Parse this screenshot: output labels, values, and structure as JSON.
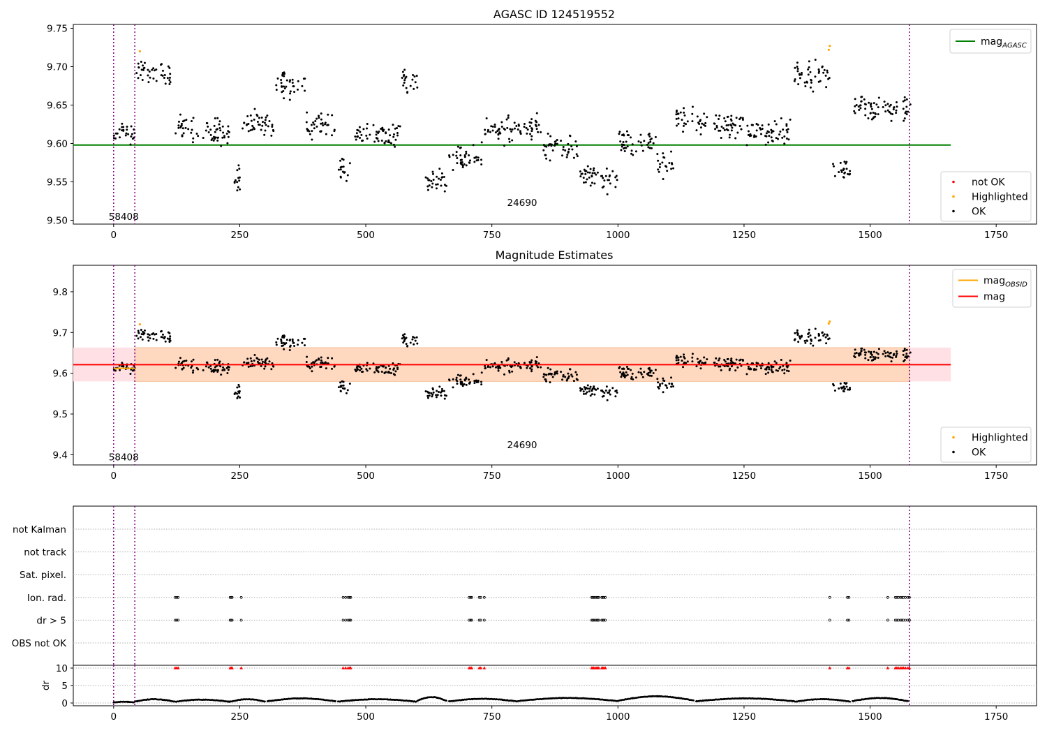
{
  "colors": {
    "ok": "#000000",
    "highlighted": "#ffa500",
    "not_ok": "#ff0000",
    "mag_agasc": "#008000",
    "mag_obsid": "#ffa500",
    "mag": "#ff0000",
    "interval": "#800080",
    "band_inner": "#ffd8c0",
    "band_outer": "#ffe0e4"
  },
  "chart_data": [
    {
      "type": "scatter",
      "title": "AGASC ID 124519552",
      "xlim": [
        -80,
        1830
      ],
      "ylim": [
        9.495,
        9.755
      ],
      "xticks": [
        0,
        250,
        500,
        750,
        1000,
        1250,
        1500,
        1750
      ],
      "yticks": [
        "9.50",
        "9.55",
        "9.60",
        "9.65",
        "9.70",
        "9.75"
      ],
      "xtick_labels": [
        "0",
        "250",
        "500",
        "750",
        "1000",
        "1250",
        "1500",
        "1750"
      ],
      "interval_lines_x": [
        0,
        42,
        1578
      ],
      "annotations": [
        {
          "text": "58408",
          "x": 20,
          "y": 9.505
        },
        {
          "text": "24690",
          "x": 810,
          "y": 9.523
        }
      ],
      "hline": {
        "name": "mag_AGASC",
        "y": 9.598,
        "x": [
          -80,
          1660
        ]
      },
      "legend": [
        {
          "label": "mag",
          "sub": "AGASC",
          "kind": "line",
          "color": "#008000"
        },
        {
          "label": "not OK",
          "kind": "marker",
          "color": "#ff0000"
        },
        {
          "label": "Highlighted",
          "kind": "marker",
          "color": "#ffa500"
        },
        {
          "label": "OK",
          "kind": "marker",
          "color": "#000000"
        }
      ],
      "series": [
        {
          "name": "OK",
          "color": "#000000",
          "segments": [
            [
              0,
              42,
              9.612
            ],
            [
              45,
              85,
              9.695
            ],
            [
              90,
              115,
              9.69
            ],
            [
              122,
              160,
              9.62
            ],
            [
              165,
              230,
              9.615
            ],
            [
              232,
              252,
              9.55
            ],
            [
              255,
              320,
              9.625
            ],
            [
              322,
              380,
              9.675
            ],
            [
              382,
              440,
              9.625
            ],
            [
              445,
              470,
              9.57
            ],
            [
              475,
              570,
              9.612
            ],
            [
              572,
              605,
              9.68
            ],
            [
              615,
              660,
              9.55
            ],
            [
              665,
              730,
              9.58
            ],
            [
              735,
              850,
              9.62
            ],
            [
              852,
              920,
              9.595
            ],
            [
              925,
              1000,
              9.555
            ],
            [
              1002,
              1075,
              9.6
            ],
            [
              1078,
              1110,
              9.575
            ],
            [
              1115,
              1150,
              9.635
            ],
            [
              1155,
              1250,
              9.625
            ],
            [
              1255,
              1345,
              9.615
            ],
            [
              1350,
              1420,
              9.69
            ],
            [
              1425,
              1460,
              9.565
            ],
            [
              1465,
              1580,
              9.645
            ]
          ]
        },
        {
          "name": "Highlighted",
          "color": "#ffa500",
          "points": [
            [
              52,
              9.72
            ],
            [
              1418,
              9.722
            ],
            [
              1420,
              9.727
            ]
          ]
        }
      ]
    },
    {
      "type": "scatter",
      "title": "Magnitude Estimates",
      "xlim": [
        -80,
        1830
      ],
      "ylim": [
        9.375,
        9.865
      ],
      "xticks": [
        0,
        250,
        500,
        750,
        1000,
        1250,
        1500,
        1750
      ],
      "yticks": [
        "9.4",
        "9.5",
        "9.6",
        "9.7",
        "9.8"
      ],
      "xtick_labels": [
        "0",
        "250",
        "500",
        "750",
        "1000",
        "1250",
        "1500",
        "1750"
      ],
      "interval_lines_x": [
        0,
        42,
        1578
      ],
      "annotations": [
        {
          "text": "58408",
          "x": 20,
          "y": 9.395
        },
        {
          "text": "24690",
          "x": 810,
          "y": 9.425
        }
      ],
      "hline": {
        "name": "mag",
        "y": 9.621,
        "x": [
          -80,
          1660
        ]
      },
      "band": {
        "y": [
          9.58,
          9.663
        ],
        "x": [
          -80,
          1660
        ]
      },
      "legend": [
        {
          "label": "mag",
          "sub": "OBSID",
          "kind": "line",
          "color": "#ffa500"
        },
        {
          "label": "mag",
          "kind": "line",
          "color": "#ff0000"
        },
        {
          "label": "Highlighted",
          "kind": "marker",
          "color": "#ffa500"
        },
        {
          "label": "OK",
          "kind": "marker",
          "color": "#000000"
        }
      ],
      "series": [
        {
          "name": "OK",
          "color": "#000000",
          "segments": [
            [
              0,
              42,
              9.612
            ],
            [
              45,
              85,
              9.695
            ],
            [
              90,
              115,
              9.69
            ],
            [
              122,
              160,
              9.62
            ],
            [
              165,
              230,
              9.615
            ],
            [
              232,
              252,
              9.55
            ],
            [
              255,
              320,
              9.625
            ],
            [
              322,
              380,
              9.675
            ],
            [
              382,
              440,
              9.625
            ],
            [
              445,
              470,
              9.57
            ],
            [
              475,
              570,
              9.612
            ],
            [
              572,
              605,
              9.68
            ],
            [
              615,
              660,
              9.55
            ],
            [
              665,
              730,
              9.58
            ],
            [
              735,
              850,
              9.62
            ],
            [
              852,
              920,
              9.595
            ],
            [
              925,
              1000,
              9.555
            ],
            [
              1002,
              1075,
              9.6
            ],
            [
              1078,
              1110,
              9.575
            ],
            [
              1115,
              1150,
              9.635
            ],
            [
              1155,
              1250,
              9.625
            ],
            [
              1255,
              1345,
              9.615
            ],
            [
              1350,
              1420,
              9.69
            ],
            [
              1425,
              1460,
              9.565
            ],
            [
              1465,
              1580,
              9.645
            ]
          ]
        },
        {
          "name": "Highlighted",
          "color": "#ffa500",
          "points": [
            [
              52,
              9.72
            ],
            [
              1418,
              9.722
            ],
            [
              1420,
              9.727
            ]
          ]
        }
      ]
    },
    {
      "type": "scatter",
      "title": "",
      "xlim": [
        -80,
        1830
      ],
      "categories": [
        "not Kalman",
        "not track",
        "Sat. pixel.",
        "Ion. rad.",
        "dr > 5",
        "OBS not OK"
      ],
      "interval_lines_x": [
        0,
        42,
        1578
      ],
      "flag_x": [
        122,
        125,
        128,
        231,
        233,
        235,
        253,
        455,
        460,
        465,
        468,
        470,
        705,
        708,
        710,
        725,
        728,
        735,
        948,
        950,
        952,
        955,
        958,
        960,
        962,
        968,
        970,
        972,
        975,
        1420,
        1455,
        1458,
        1535,
        1550,
        1553,
        1556,
        1560,
        1563,
        1566,
        1570,
        1575,
        1578
      ],
      "flags": {
        "Ion. rad.": "flag_x",
        "dr > 5": "flag_x"
      }
    },
    {
      "type": "scatter",
      "title": "",
      "ylabel": "dr",
      "xlim": [
        -80,
        1830
      ],
      "ylim": [
        -0.8,
        10.8
      ],
      "yticks": [
        "0",
        "5",
        "10"
      ],
      "xticks": [
        0,
        250,
        500,
        750,
        1000,
        1250,
        1500,
        1750
      ],
      "xtick_labels": [
        "0",
        "250",
        "500",
        "750",
        "1000",
        "1250",
        "1500",
        "1750"
      ],
      "interval_lines_x": [
        0,
        42,
        1578
      ],
      "dr_segments": [
        [
          0,
          40,
          0.3
        ],
        [
          42,
          120,
          0.9
        ],
        [
          122,
          230,
          0.8
        ],
        [
          232,
          300,
          0.9
        ],
        [
          305,
          440,
          1.1
        ],
        [
          445,
          600,
          0.9
        ],
        [
          602,
          660,
          1.4
        ],
        [
          665,
          800,
          1.0
        ],
        [
          802,
          1000,
          1.2
        ],
        [
          1002,
          1150,
          1.6
        ],
        [
          1155,
          1350,
          1.1
        ],
        [
          1352,
          1460,
          0.9
        ],
        [
          1465,
          1575,
          1.2
        ]
      ],
      "capped_value": 10,
      "capped_color": "#ff0000"
    }
  ]
}
